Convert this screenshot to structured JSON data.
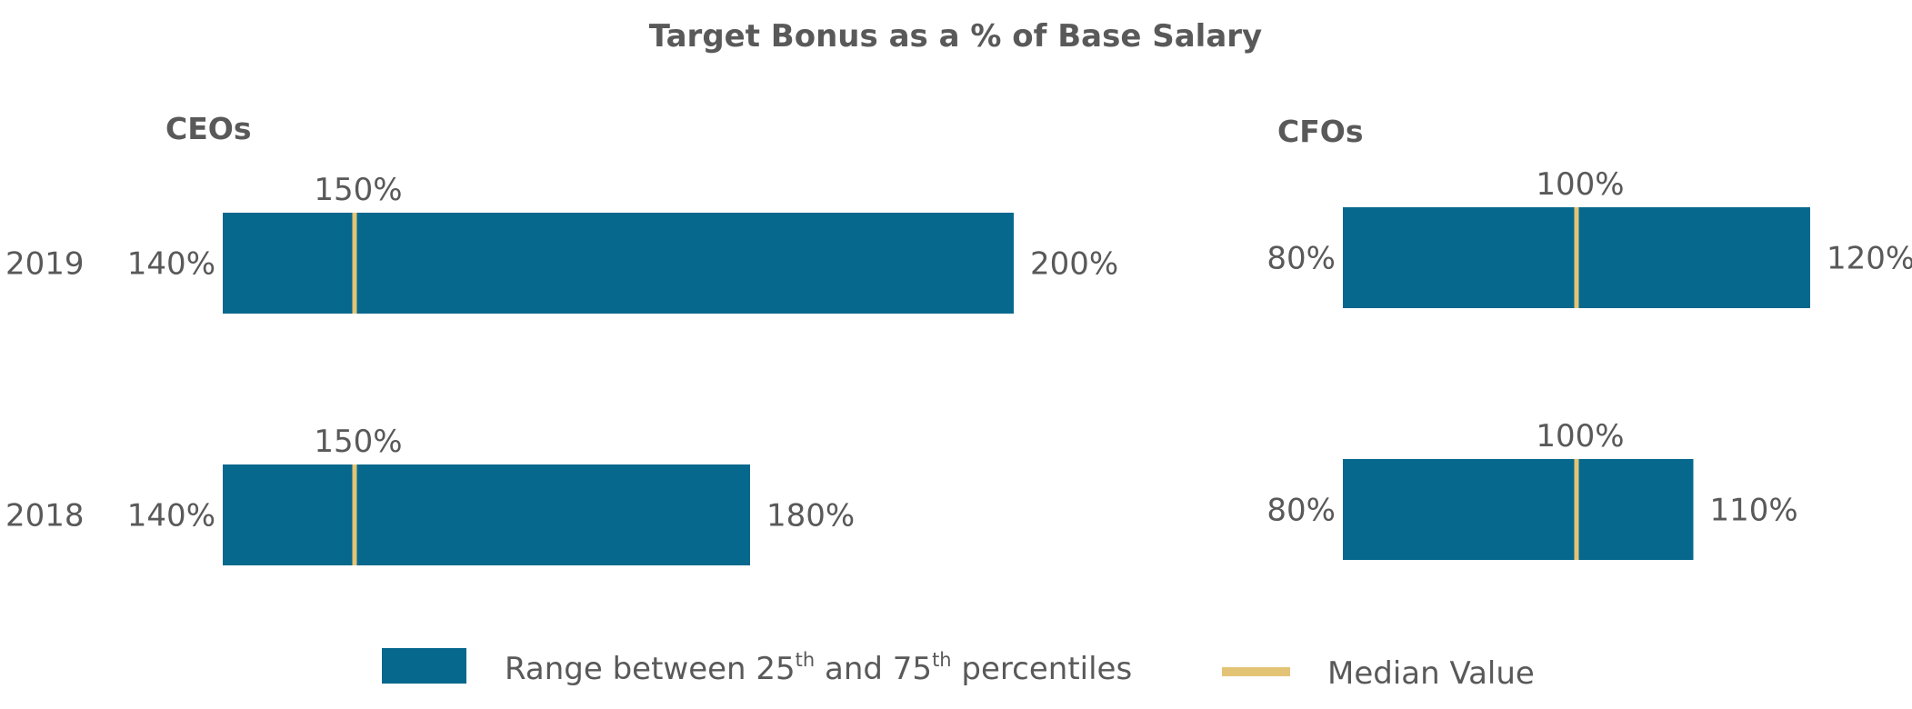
{
  "chart_data": {
    "type": "range-bar",
    "title": "Target Bonus as a % of Base Salary",
    "unit": "%",
    "colors": {
      "range": "#07688d",
      "median": "#e3c477",
      "text": "#595959"
    },
    "legend": {
      "placement": "bottom",
      "range_label": {
        "pre": "Range between 25",
        "sup1": "th",
        "mid": " and 75",
        "sup2": "th",
        "post": " percentiles"
      },
      "median_label": "Median Value"
    },
    "panels": [
      {
        "title": "CEOs",
        "rows": [
          {
            "year": "2019",
            "p25": 140,
            "median": 150,
            "p75": 200,
            "low_label": "140%",
            "median_label": "150%",
            "high_label": "200%"
          },
          {
            "year": "2018",
            "p25": 140,
            "median": 150,
            "p75": 180,
            "low_label": "140%",
            "median_label": "150%",
            "high_label": "180%"
          }
        ]
      },
      {
        "title": "CFOs",
        "rows": [
          {
            "year": "2019",
            "p25": 80,
            "median": 100,
            "p75": 120,
            "low_label": "80%",
            "median_label": "100%",
            "high_label": "120%"
          },
          {
            "year": "2018",
            "p25": 80,
            "median": 100,
            "p75": 110,
            "low_label": "80%",
            "median_label": "100%",
            "high_label": "110%"
          }
        ]
      }
    ]
  }
}
